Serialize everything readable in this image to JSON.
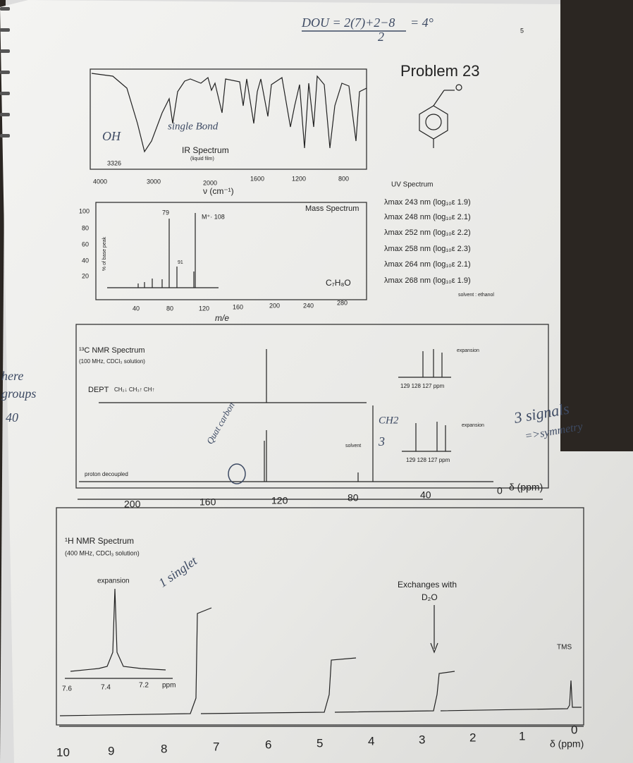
{
  "page_number": "5",
  "title": "Problem 23",
  "handwritten": {
    "dou_top": "DOU = 2(7)+2−8",
    "dou_bottom": "2",
    "dou_result": "= 4°",
    "oh": "OH",
    "single_bond": "single Bond",
    "quat_carbon": "Quat carbon",
    "ch2": "CH2",
    "three": "3",
    "signals": "3 signals",
    "symmetry": "=>symmetry",
    "singlet": "1 singlet",
    "margin": [
      "here",
      "groups",
      "40"
    ]
  },
  "ir": {
    "label": "IR Spectrum",
    "sublabel": "(liquid film)",
    "peak": "3326",
    "xticks": [
      "4000",
      "3000",
      "2000",
      "1600",
      "1200",
      "800"
    ],
    "xlabel": "ν (cm⁻¹)"
  },
  "mass": {
    "label": "Mass Spectrum",
    "ylabel": "% of base peak",
    "yticks": [
      "100",
      "80",
      "60",
      "40",
      "20"
    ],
    "peaks": [
      "79",
      "91",
      "M⁺· 108"
    ],
    "formula": "C₇H₈O",
    "xticks": [
      "40",
      "80",
      "120",
      "160",
      "200",
      "240",
      "280"
    ],
    "xlabel": "m/e"
  },
  "uv": {
    "label": "UV Spectrum",
    "lines": [
      "λmax 243 nm (log₁₀ε 1.9)",
      "λmax 248 nm (log₁₀ε 2.1)",
      "λmax 252 nm (log₁₀ε 2.2)",
      "λmax 258 nm (log₁₀ε 2.3)",
      "λmax 264 nm (log₁₀ε 2.1)",
      "λmax 268 nm (log₁₀ε 1.9)"
    ],
    "solvent": "solvent : ethanol"
  },
  "c13": {
    "label": "¹³C NMR Spectrum",
    "sublabel": "(100 MHz, CDCl₃ solution)",
    "dept": "DEPT",
    "dept_key": "CH₂↓ CH₃↑ CH↑",
    "expansion": "expansion",
    "expansion_ticks": "129  128  127   ppm",
    "solvent": "solvent",
    "decoupled": "proton decoupled",
    "xticks": [
      "200",
      "160",
      "120",
      "80",
      "40",
      "0"
    ],
    "xlabel": "δ (ppm)"
  },
  "h1": {
    "label": "¹H NMR Spectrum",
    "sublabel": "(400 MHz, CDCl₃ solution)",
    "expansion": "expansion",
    "expansion_ticks": [
      "7.6",
      "7.4",
      "7.2",
      "ppm"
    ],
    "exchange": "Exchanges with",
    "d2o": "D₂O",
    "tms": "TMS",
    "xticks": [
      "10",
      "9",
      "8",
      "7",
      "6",
      "5",
      "4",
      "3",
      "2",
      "1",
      "0"
    ],
    "xlabel": "δ (ppm)"
  }
}
